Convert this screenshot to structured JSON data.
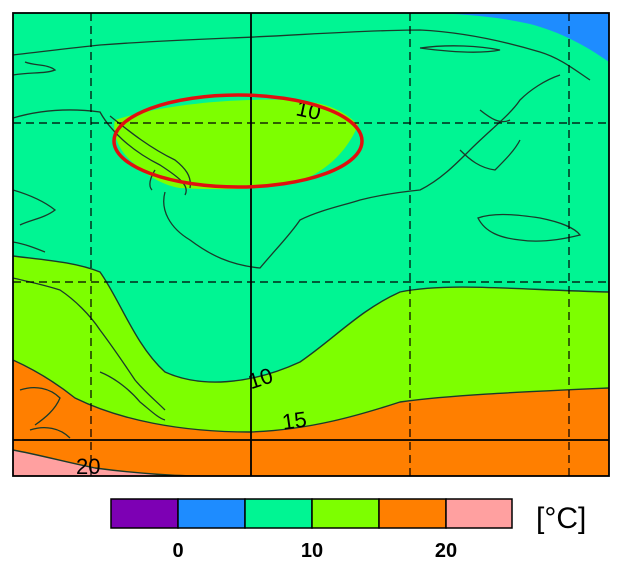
{
  "colors": {
    "band_0_5": "#1e8cff",
    "band_5_10": "#00f593",
    "band_10_15": "#7dff00",
    "band_15_20": "#ff7f00",
    "band_20_25": "#ffa0a0",
    "band_below_0": "#7d00b4",
    "coast": "#1a3a2a",
    "highlight": "#e01010"
  },
  "contours": {
    "label_10_north": "10",
    "label_10_south": "10",
    "label_15": "15",
    "label_20": "20"
  },
  "legend": {
    "unit": "[°C]",
    "ticks": [
      "0",
      "10",
      "20"
    ]
  }
}
